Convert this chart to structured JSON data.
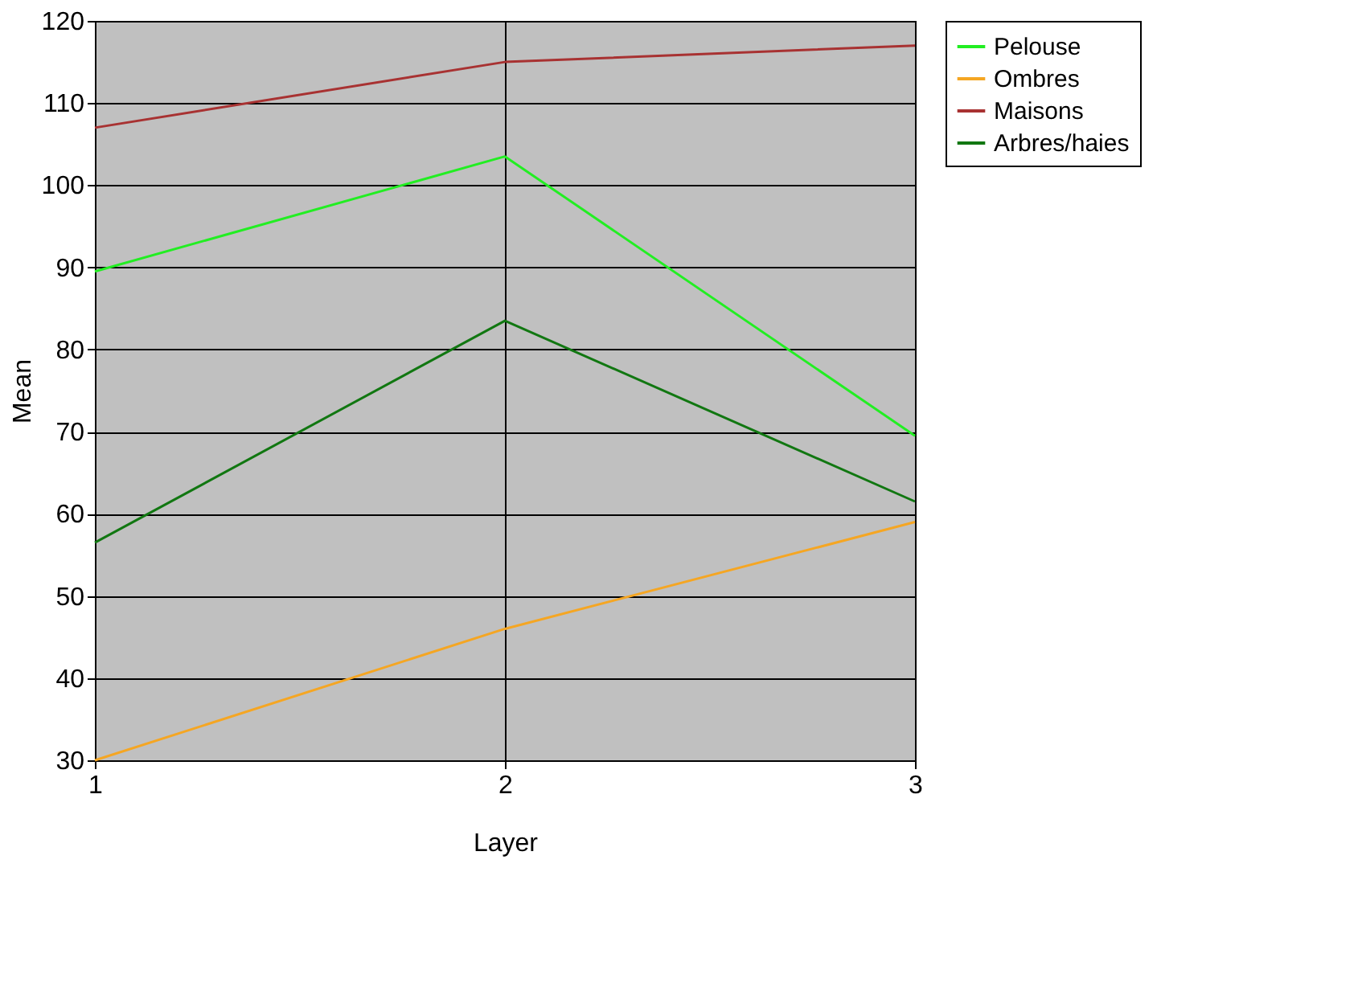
{
  "chart_data": {
    "type": "line",
    "xlabel": "Layer",
    "ylabel": "Mean",
    "x": [
      1,
      2,
      3
    ],
    "xlim": [
      1,
      3
    ],
    "xticks": [
      1,
      2,
      3
    ],
    "ylim": [
      30,
      120
    ],
    "yticks": [
      30,
      40,
      50,
      60,
      70,
      80,
      90,
      100,
      110,
      120
    ],
    "grid": true,
    "legend": "right",
    "marker": "none",
    "line_style": "solid",
    "series": [
      {
        "name": "Pelouse",
        "color": "#22ee22",
        "values": [
          89.5,
          103.5,
          69.5
        ]
      },
      {
        "name": "Ombres",
        "color": "#f5a623",
        "values": [
          30,
          46,
          59
        ]
      },
      {
        "name": "Maisons",
        "color": "#a83232",
        "values": [
          107,
          115,
          117
        ]
      },
      {
        "name": "Arbres/haies",
        "color": "#117711",
        "values": [
          56.5,
          83.5,
          61.5
        ]
      }
    ]
  }
}
